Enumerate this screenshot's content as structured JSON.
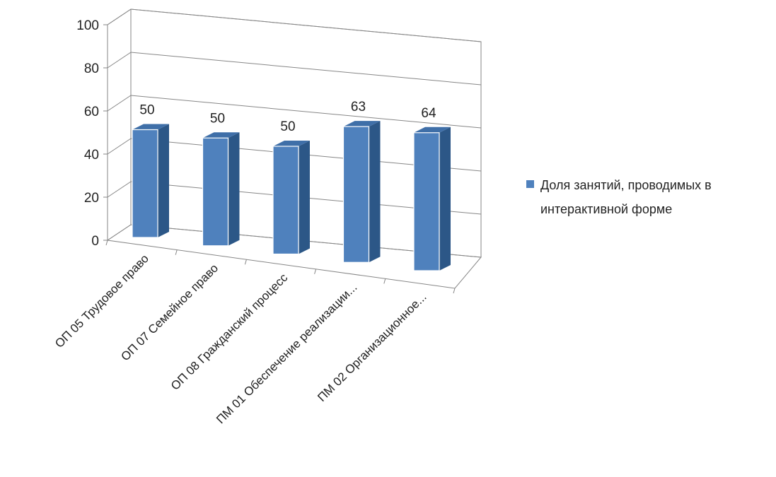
{
  "chart_data": {
    "type": "bar",
    "categories": [
      "ОП 05 Трудовое право",
      "ОП 07  Семейное право",
      "ОП 08 Гражданский процесс",
      "ПМ 01 Обеспечение реализации...",
      "ПМ 02 Организационное..."
    ],
    "series": [
      {
        "name": "Доля занятий, проводимых в интерактивной форме",
        "values": [
          50,
          50,
          50,
          63,
          64
        ]
      }
    ],
    "data_labels": [
      "50",
      "50",
      "50",
      "63",
      "64"
    ],
    "yticks": [
      "0",
      "20",
      "40",
      "60",
      "80",
      "100"
    ],
    "ylim": [
      0,
      100
    ],
    "grid": true,
    "legend_position": "right",
    "legend_lines": [
      "Доля занятий, проводимых в",
      "интерактивной форме"
    ],
    "colors": {
      "bar_front": "#4f81bd",
      "bar_side": "#2c5787",
      "bar_top": "#3f6fa8",
      "grid": "#868686"
    }
  }
}
